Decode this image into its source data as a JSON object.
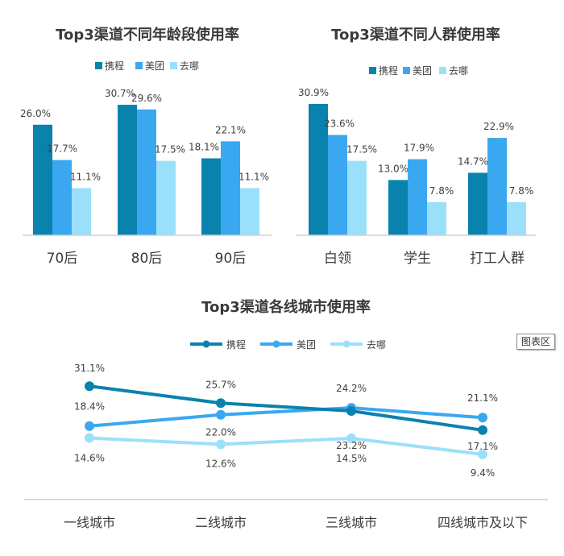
{
  "colors": {
    "ctrip": "#0a82ae",
    "meituan": "#3aa8f0",
    "qunar": "#9be0fa"
  },
  "chart_area_tag": "图表区",
  "chart_data": [
    {
      "type": "bar",
      "title": "Top3渠道不同年龄段使用率",
      "categories": [
        "70后",
        "80后",
        "90后"
      ],
      "series": [
        {
          "name": "携程",
          "values": [
            26.0,
            30.7,
            18.1
          ],
          "labels": [
            "26.0%",
            "30.7%",
            "18.1%"
          ]
        },
        {
          "name": "美团",
          "values": [
            17.7,
            29.6,
            22.1
          ],
          "labels": [
            "17.7%",
            "29.6%",
            "22.1%"
          ]
        },
        {
          "name": "去哪",
          "values": [
            11.1,
            17.5,
            11.1
          ],
          "labels": [
            "11.1%",
            "17.5%",
            "11.1%"
          ]
        }
      ],
      "ylim": [
        0,
        35
      ],
      "legend": "top",
      "grid": false
    },
    {
      "type": "bar",
      "title": "Top3渠道不同人群使用率",
      "categories": [
        "白领",
        "学生",
        "打工人群"
      ],
      "series": [
        {
          "name": "携程",
          "values": [
            30.9,
            13.0,
            14.7
          ],
          "labels": [
            "30.9%",
            "13.0%",
            "14.7%"
          ]
        },
        {
          "name": "美团",
          "values": [
            23.6,
            17.9,
            22.9
          ],
          "labels": [
            "23.6%",
            "17.9%",
            "22.9%"
          ]
        },
        {
          "name": "去哪",
          "values": [
            17.5,
            7.8,
            7.8
          ],
          "labels": [
            "17.5%",
            "7.8%",
            "7.8%"
          ]
        }
      ],
      "ylim": [
        0,
        35
      ],
      "legend": "top",
      "grid": false
    },
    {
      "type": "line",
      "title": "Top3渠道各线城市使用率",
      "categories": [
        "一线城市",
        "二线城市",
        "三线城市",
        "四线城市及以下"
      ],
      "series": [
        {
          "name": "携程",
          "values": [
            31.1,
            25.7,
            23.2,
            17.1
          ],
          "labels": [
            "31.1%",
            "25.7%",
            "23.2%",
            "17.1%"
          ]
        },
        {
          "name": "美团",
          "values": [
            18.4,
            22.0,
            24.2,
            21.1
          ],
          "labels": [
            "18.4%",
            "22.0%",
            "24.2%",
            "21.1%"
          ]
        },
        {
          "name": "去哪",
          "values": [
            14.6,
            12.6,
            14.5,
            9.4
          ],
          "labels": [
            "14.6%",
            "12.6%",
            "14.5%",
            "9.4%"
          ]
        }
      ],
      "legend": "top",
      "grid": false
    }
  ]
}
